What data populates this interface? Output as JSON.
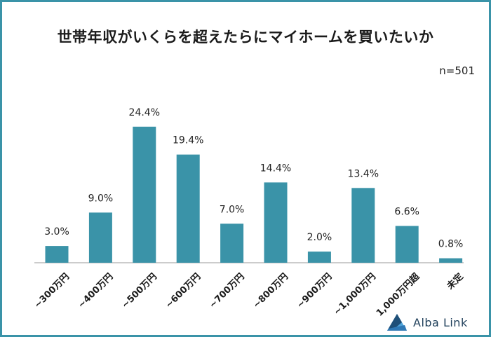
{
  "chart_data": {
    "type": "bar",
    "title": "世帯年収がいくらを超えたらにマイホームを買いたいか",
    "note": "n=501",
    "categories": [
      "~300万円",
      "~400万円",
      "~500万円",
      "~600万円",
      "~700万円",
      "~800万円",
      "~900万円",
      "~1,000万円",
      "1,000万円超",
      "未定"
    ],
    "values": [
      3.0,
      9.0,
      24.4,
      19.4,
      7.0,
      14.4,
      2.0,
      13.4,
      6.6,
      0.8
    ],
    "value_labels": [
      "3.0%",
      "9.0%",
      "24.4%",
      "19.4%",
      "7.0%",
      "14.4%",
      "2.0%",
      "13.4%",
      "6.6%",
      "0.8%"
    ],
    "unit": "%",
    "ylim": [
      0,
      25
    ],
    "grid": false,
    "xlabel": "",
    "ylabel": "",
    "bar_color": "#3a93a8"
  },
  "brand": {
    "name": "Alba Link"
  },
  "colors": {
    "frame": "#3a93a8",
    "bar": "#3a93a8",
    "axis": "#999999",
    "logo_dark": "#1f4f78",
    "logo_light": "#4fa3d9"
  }
}
